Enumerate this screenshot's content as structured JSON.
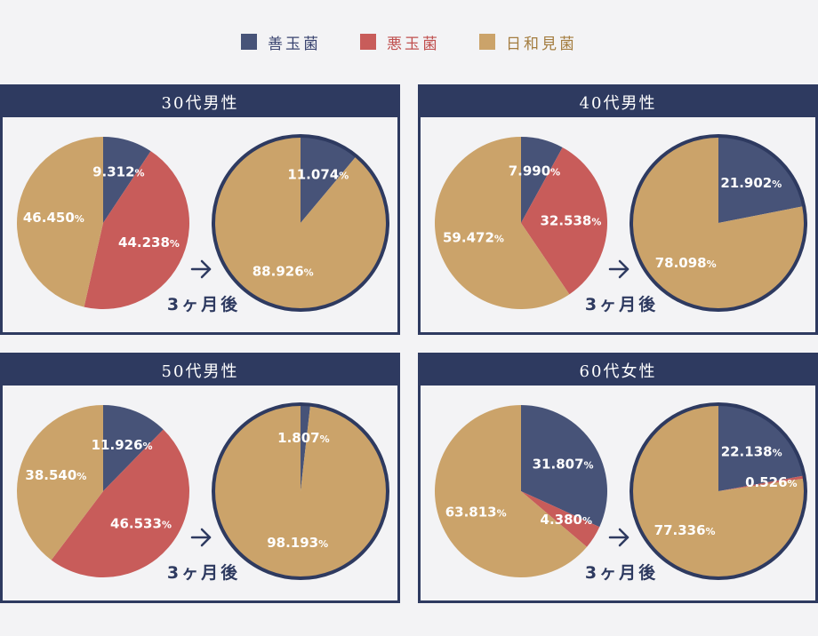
{
  "legend": [
    {
      "label": "善玉菌",
      "color": "#475378"
    },
    {
      "label": "悪玉菌",
      "color": "#c85c5a"
    },
    {
      "label": "日和見菌",
      "color": "#cba36a"
    }
  ],
  "colors": {
    "good": "#475378",
    "bad": "#c85c5a",
    "neutral": "#cba36a",
    "legend_text_good": "#3a4470",
    "legend_text_bad": "#c0504f",
    "legend_text_neutral": "#a47d40",
    "ring": "#2e3a60"
  },
  "after_label": "3ヶ月後",
  "arrow_icon": "arrow-right-icon",
  "chart_data": [
    {
      "type": "pie",
      "title": "30代男性",
      "before": [
        {
          "series": "善玉菌",
          "value": 9.312,
          "label": "9.312%"
        },
        {
          "series": "悪玉菌",
          "value": 44.238,
          "label": "44.238%"
        },
        {
          "series": "日和見菌",
          "value": 46.45,
          "label": "46.450%"
        }
      ],
      "after": [
        {
          "series": "善玉菌",
          "value": 11.074,
          "label": "11.074%"
        },
        {
          "series": "日和見菌",
          "value": 88.926,
          "label": "88.926%"
        }
      ]
    },
    {
      "type": "pie",
      "title": "40代男性",
      "before": [
        {
          "series": "善玉菌",
          "value": 7.99,
          "label": "7.990%"
        },
        {
          "series": "悪玉菌",
          "value": 32.538,
          "label": "32.538%"
        },
        {
          "series": "日和見菌",
          "value": 59.472,
          "label": "59.472%"
        }
      ],
      "after": [
        {
          "series": "善玉菌",
          "value": 21.902,
          "label": "21.902%"
        },
        {
          "series": "日和見菌",
          "value": 78.098,
          "label": "78.098%"
        }
      ]
    },
    {
      "type": "pie",
      "title": "50代男性",
      "before": [
        {
          "series": "善玉菌",
          "value": 11.926,
          "label": "11.926%"
        },
        {
          "series": "悪玉菌",
          "value": 46.533,
          "label": "46.533%"
        },
        {
          "series": "日和見菌",
          "value": 38.54,
          "label": "38.540%"
        }
      ],
      "after": [
        {
          "series": "善玉菌",
          "value": 1.807,
          "label": "1.807%"
        },
        {
          "series": "日和見菌",
          "value": 98.193,
          "label": "98.193%"
        }
      ]
    },
    {
      "type": "pie",
      "title": "60代女性",
      "before": [
        {
          "series": "善玉菌",
          "value": 31.807,
          "label": "31.807%"
        },
        {
          "series": "悪玉菌",
          "value": 4.38,
          "label": "4.380%"
        },
        {
          "series": "日和見菌",
          "value": 63.813,
          "label": "63.813%"
        }
      ],
      "after": [
        {
          "series": "善玉菌",
          "value": 22.138,
          "label": "22.138%"
        },
        {
          "series": "悪玉菌",
          "value": 0.526,
          "label": "0.526%"
        },
        {
          "series": "日和見菌",
          "value": 77.336,
          "label": "77.336%"
        }
      ]
    }
  ]
}
